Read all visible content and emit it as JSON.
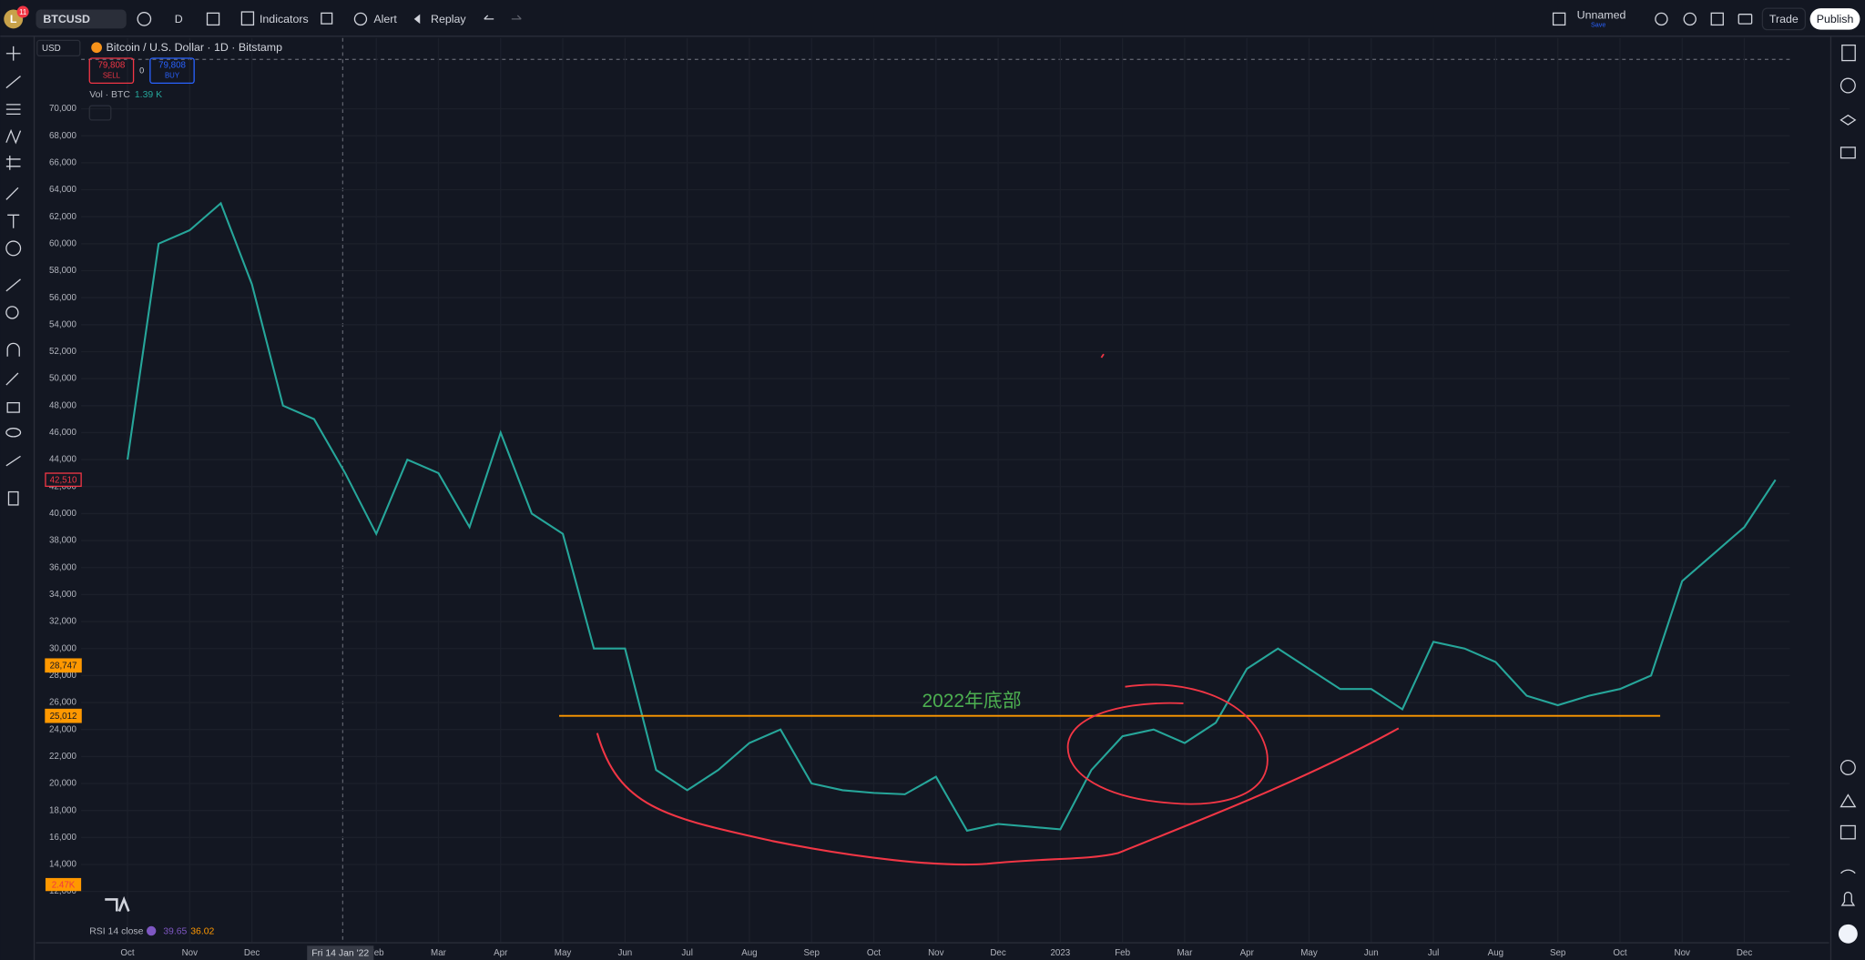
{
  "toolbar": {
    "avatar": "L",
    "badge": "11",
    "symbol": "BTCUSD",
    "interval": "D",
    "indicators": "Indicators",
    "alert": "Alert",
    "replay": "Replay",
    "layout_name": "Unnamed",
    "save": "Save",
    "trade": "Trade",
    "publish": "Publish"
  },
  "legend": {
    "title": "Bitcoin / U.S. Dollar · 1D · Bitstamp",
    "sell_price": "79,808",
    "sell": "SELL",
    "spread": "0",
    "buy_price": "79,808",
    "buy": "BUY",
    "volume_label": "Vol · BTC",
    "volume_value": "1.39 K"
  },
  "rsi": {
    "label": "RSI 14 close",
    "value1": "39.65",
    "value2": "36.02"
  },
  "volume_tag": "2.47K",
  "currency": "USD",
  "crosshair_date": "Fri 14 Jan '22",
  "chart_data": {
    "type": "line",
    "annotation": "2022年底部",
    "categories": [
      "Oct",
      null,
      "Nov",
      null,
      "Dec",
      null,
      null,
      null,
      "Feb",
      null,
      "Mar",
      null,
      "Apr",
      null,
      "May",
      null,
      "Jun",
      null,
      "Jul",
      null,
      "Aug",
      null,
      "Sep",
      null,
      "Oct",
      null,
      "Nov",
      null,
      "Dec",
      null,
      "2023",
      null,
      "Feb",
      null,
      "Mar",
      null,
      "Apr",
      null,
      "May",
      null,
      "Jun",
      null,
      "Jul",
      null,
      "Aug",
      null,
      "Sep",
      null,
      "Oct",
      null,
      "Nov",
      null,
      "Dec",
      null
    ],
    "values": [
      44000,
      60000,
      61000,
      63000,
      57000,
      48000,
      47000,
      43000,
      38500,
      44000,
      43000,
      39000,
      46000,
      40000,
      38500,
      30000,
      30000,
      21000,
      19500,
      21000,
      23000,
      24000,
      20000,
      19500,
      19300,
      19200,
      20500,
      16500,
      17000,
      16800,
      16600,
      21000,
      23500,
      24000,
      23000,
      24500,
      28500,
      30000,
      28500,
      27000,
      27000,
      25500,
      30500,
      30000,
      29000,
      26500,
      25800,
      26500,
      27000,
      28000,
      35000,
      37000,
      39000,
      42500
    ],
    "color": "#26a69a",
    "ylim": [
      10000,
      74100
    ],
    "yticks": [
      {
        "value": 12000,
        "label": "12,000"
      },
      {
        "value": 14000,
        "label": "14,000"
      },
      {
        "value": 16000,
        "label": "16,000"
      },
      {
        "value": 18000,
        "label": "18,000"
      },
      {
        "value": 20000,
        "label": "20,000"
      },
      {
        "value": 22000,
        "label": "22,000"
      },
      {
        "value": 24000,
        "label": "24,000"
      },
      {
        "value": 26000,
        "label": "26,000"
      },
      {
        "value": 28000,
        "label": "28,000"
      },
      {
        "value": 30000,
        "label": "30,000"
      },
      {
        "value": 32000,
        "label": "32,000"
      },
      {
        "value": 34000,
        "label": "34,000"
      },
      {
        "value": 36000,
        "label": "36,000"
      },
      {
        "value": 38000,
        "label": "38,000"
      },
      {
        "value": 40000,
        "label": "40,000"
      },
      {
        "value": 42000,
        "label": "42,000"
      },
      {
        "value": 44000,
        "label": "44,000"
      },
      {
        "value": 46000,
        "label": "46,000"
      },
      {
        "value": 48000,
        "label": "48,000"
      },
      {
        "value": 50000,
        "label": "50,000"
      },
      {
        "value": 52000,
        "label": "52,000"
      },
      {
        "value": 54000,
        "label": "54,000"
      },
      {
        "value": 56000,
        "label": "56,000"
      },
      {
        "value": 58000,
        "label": "58,000"
      },
      {
        "value": 60000,
        "label": "60,000"
      },
      {
        "value": 62000,
        "label": "62,000"
      },
      {
        "value": 64000,
        "label": "64,000"
      },
      {
        "value": 66000,
        "label": "66,000"
      },
      {
        "value": 68000,
        "label": "68,000"
      },
      {
        "value": 70000,
        "label": "70,000"
      }
    ],
    "grid": true,
    "price_labels": [
      {
        "value": 42510,
        "label": "42,510",
        "color": "#f23645"
      },
      {
        "value": 28747,
        "label": "28,747",
        "color": "#ff9800"
      },
      {
        "value": 25012,
        "label": "25,012",
        "color": "#ff9800",
        "line": true
      }
    ]
  }
}
